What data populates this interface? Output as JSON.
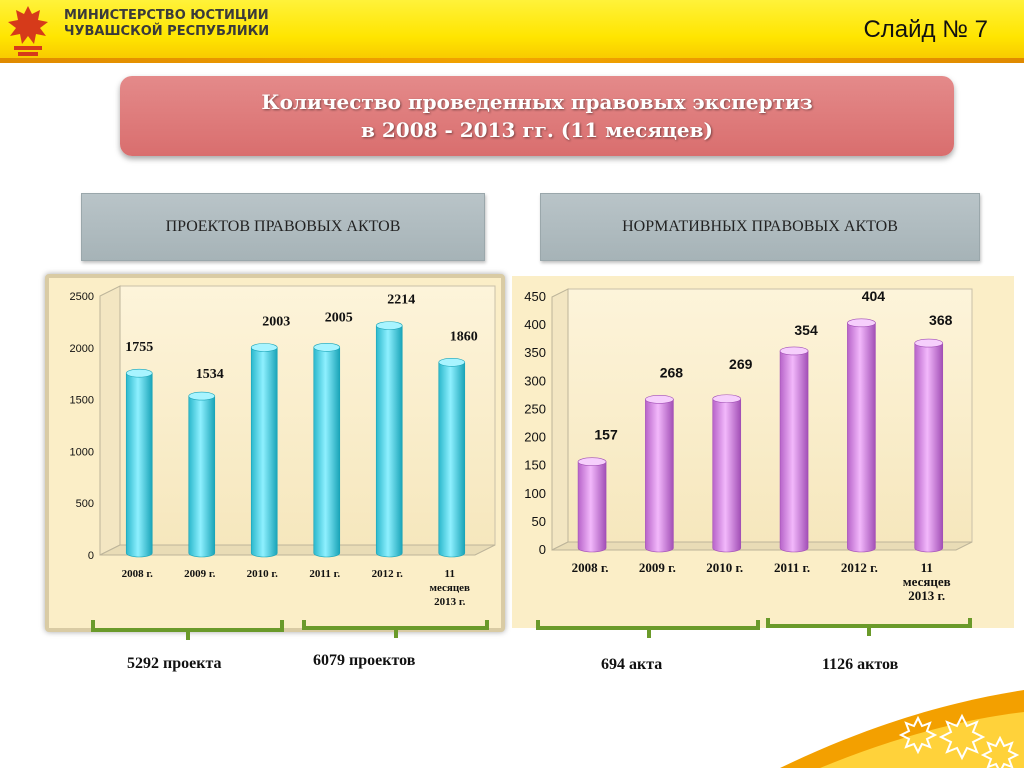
{
  "header": {
    "ministry_line1": "МИНИСТЕРСТВО ЮСТИЦИИ",
    "ministry_line2": "ЧУВАШСКОЙ РЕСПУБЛИКИ",
    "slide_number": "Слайд № 7"
  },
  "title": {
    "line1": "Количество проведенных правовых экспертиз",
    "line2": "в 2008 - 2013 гг. (11 месяцев)"
  },
  "categories": {
    "left": "ПРОЕКТОВ ПРАВОВЫХ АКТОВ",
    "right": "НОРМАТИВНЫХ ПРАВОВЫХ АКТОВ"
  },
  "totals": {
    "left_a": "5292 проекта",
    "left_b": "6079 проектов",
    "right_a": "694 акта",
    "right_b": "1126 актов"
  },
  "colors": {
    "left_bar": "#5fd9ea",
    "right_bar": "#d98ae6",
    "title_box": "#dd7777"
  },
  "chart_data": [
    {
      "type": "bar",
      "categories": [
        "2008 г.",
        "2009 г.",
        "2010 г.",
        "2011 г.",
        "2012 г.",
        "11|месяцев|2013 г."
      ],
      "values": [
        1755,
        1534,
        2003,
        2005,
        2214,
        1860
      ],
      "yticks": [
        0,
        500,
        1000,
        1500,
        2000,
        2500
      ],
      "ylim": [
        0,
        2500
      ],
      "grid": false
    },
    {
      "type": "bar",
      "categories": [
        "2008 г.",
        "2009 г.",
        "2010 г.",
        "2011 г.",
        "2012 г.",
        "11|месяцев|2013 г."
      ],
      "values": [
        157,
        268,
        269,
        354,
        404,
        368
      ],
      "yticks": [
        0,
        50,
        100,
        150,
        200,
        250,
        300,
        350,
        400,
        450
      ],
      "ylim": [
        0,
        450
      ],
      "grid": false
    }
  ]
}
